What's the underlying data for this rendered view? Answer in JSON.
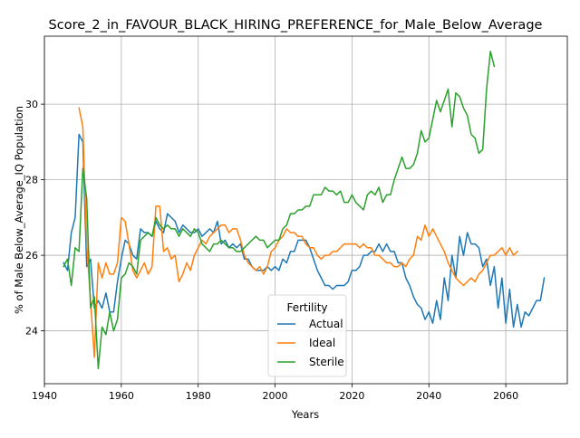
{
  "chart_data": {
    "type": "line",
    "title": "Score_2_in_FAVOUR_BLACK_HIRING_PREFERENCE_for_Male_Below_Average",
    "xlabel": "Years",
    "ylabel": "% of Male Below_Average_IQ Population",
    "xlim": [
      1940,
      2076
    ],
    "ylim": [
      22.6,
      31.8
    ],
    "xticks": [
      1940,
      1960,
      1980,
      2000,
      2020,
      2040,
      2060
    ],
    "yticks": [
      24,
      26,
      28,
      30
    ],
    "grid": true,
    "legend": {
      "title": "Fertility",
      "position": "lower-center"
    },
    "series": [
      {
        "name": "Actual",
        "color": "#1f77b4",
        "x_start": 1945,
        "x_step": 1,
        "values": [
          25.8,
          25.6,
          26.6,
          27.0,
          29.2,
          29.0,
          25.7,
          25.9,
          24.6,
          24.8,
          24.6,
          25.0,
          24.5,
          24.5,
          25.3,
          25.9,
          26.4,
          26.3,
          26.0,
          25.9,
          26.7,
          26.6,
          26.6,
          26.5,
          26.9,
          26.7,
          26.6,
          27.1,
          27.0,
          26.9,
          26.6,
          26.8,
          26.7,
          26.6,
          26.6,
          26.7,
          26.5,
          26.6,
          26.7,
          26.6,
          26.9,
          26.3,
          26.4,
          26.2,
          26.3,
          26.2,
          26.3,
          25.9,
          25.9,
          25.7,
          25.6,
          25.6,
          25.6,
          25.7,
          25.6,
          25.7,
          25.6,
          25.9,
          25.8,
          26.1,
          26.1,
          26.4,
          26.4,
          26.4,
          26.2,
          25.9,
          25.6,
          25.4,
          25.2,
          25.2,
          25.1,
          25.2,
          25.2,
          25.2,
          25.3,
          25.6,
          25.6,
          25.7,
          26.0,
          26.0,
          26.1,
          26.1,
          26.3,
          26.1,
          26.3,
          26.1,
          26.1,
          25.8,
          25.8,
          25.4,
          25.2,
          24.9,
          24.7,
          24.6,
          24.3,
          24.5,
          24.2,
          24.8,
          24.3,
          25.4,
          24.8,
          26.0,
          25.4,
          26.5,
          26.0,
          26.6,
          26.3,
          26.3,
          26.2,
          25.7,
          25.9,
          25.2,
          25.7,
          24.6,
          25.4,
          24.2,
          25.1,
          24.1,
          24.7,
          24.1,
          24.5,
          24.4,
          24.6,
          24.8,
          24.8,
          25.4
        ]
      },
      {
        "name": "Ideal",
        "color": "#ff7f0e",
        "x_start": 1949,
        "x_step": 1,
        "values": [
          29.9,
          29.4,
          26.3,
          24.8,
          23.3,
          25.8,
          25.4,
          25.8,
          25.5,
          25.5,
          25.8,
          27.0,
          26.9,
          26.3,
          25.6,
          25.4,
          25.6,
          25.8,
          25.5,
          25.7,
          27.3,
          27.3,
          26.1,
          26.2,
          25.9,
          26.0,
          25.3,
          25.5,
          25.8,
          25.6,
          26.0,
          26.2,
          26.4,
          26.3,
          26.5,
          26.6,
          26.7,
          26.8,
          26.8,
          26.6,
          26.7,
          26.7,
          26.4,
          26.0,
          25.8,
          25.7,
          25.6,
          25.7,
          25.5,
          25.7,
          26.1,
          26.2,
          26.4,
          26.5,
          26.7,
          26.6,
          26.6,
          26.5,
          26.5,
          26.3,
          26.2,
          26.2,
          26.0,
          25.9,
          26.0,
          26.0,
          26.1,
          26.1,
          26.2,
          26.3,
          26.3,
          26.3,
          26.3,
          26.2,
          26.3,
          26.2,
          26.2,
          26.0,
          26.0,
          25.9,
          25.8,
          25.8,
          25.7,
          25.7,
          25.8,
          25.7,
          25.9,
          26.0,
          26.5,
          26.4,
          26.8,
          26.5,
          26.7,
          26.5,
          26.3,
          26.1,
          25.8,
          25.6,
          25.4,
          25.3,
          25.2,
          25.3,
          25.4,
          25.3,
          25.5,
          25.6,
          25.8,
          26.0,
          26.0,
          26.1,
          26.2,
          26.0,
          26.2,
          26.0,
          26.1
        ]
      },
      {
        "name": "Sterile",
        "color": "#2ca02c",
        "x_start": 1945,
        "x_step": 1,
        "values": [
          25.7,
          25.9,
          25.2,
          26.2,
          26.1,
          28.3,
          27.5,
          24.6,
          24.9,
          23.0,
          24.1,
          23.9,
          24.5,
          24.0,
          24.3,
          25.4,
          25.5,
          25.8,
          25.7,
          25.5,
          26.4,
          26.5,
          26.6,
          26.5,
          27.0,
          26.8,
          26.7,
          26.8,
          26.7,
          26.7,
          26.5,
          26.7,
          26.6,
          26.5,
          26.7,
          26.6,
          26.3,
          26.2,
          26.1,
          26.3,
          26.3,
          26.4,
          26.3,
          26.2,
          26.2,
          26.1,
          26.1,
          26.2,
          26.3,
          26.4,
          26.5,
          26.4,
          26.4,
          26.2,
          26.3,
          26.4,
          26.4,
          26.7,
          26.8,
          27.1,
          27.1,
          27.2,
          27.2,
          27.3,
          27.3,
          27.6,
          27.6,
          27.6,
          27.8,
          27.7,
          27.7,
          27.6,
          27.7,
          27.4,
          27.4,
          27.6,
          27.4,
          27.3,
          27.2,
          27.6,
          27.7,
          27.6,
          27.8,
          27.4,
          27.6,
          27.6,
          28.0,
          28.3,
          28.6,
          28.3,
          28.3,
          28.4,
          28.7,
          29.3,
          29.0,
          29.1,
          29.6,
          30.1,
          29.8,
          30.1,
          30.4,
          29.4,
          30.3,
          30.2,
          29.9,
          29.7,
          29.2,
          29.1,
          28.7,
          28.8,
          30.4,
          31.4,
          31.0
        ]
      }
    ]
  }
}
